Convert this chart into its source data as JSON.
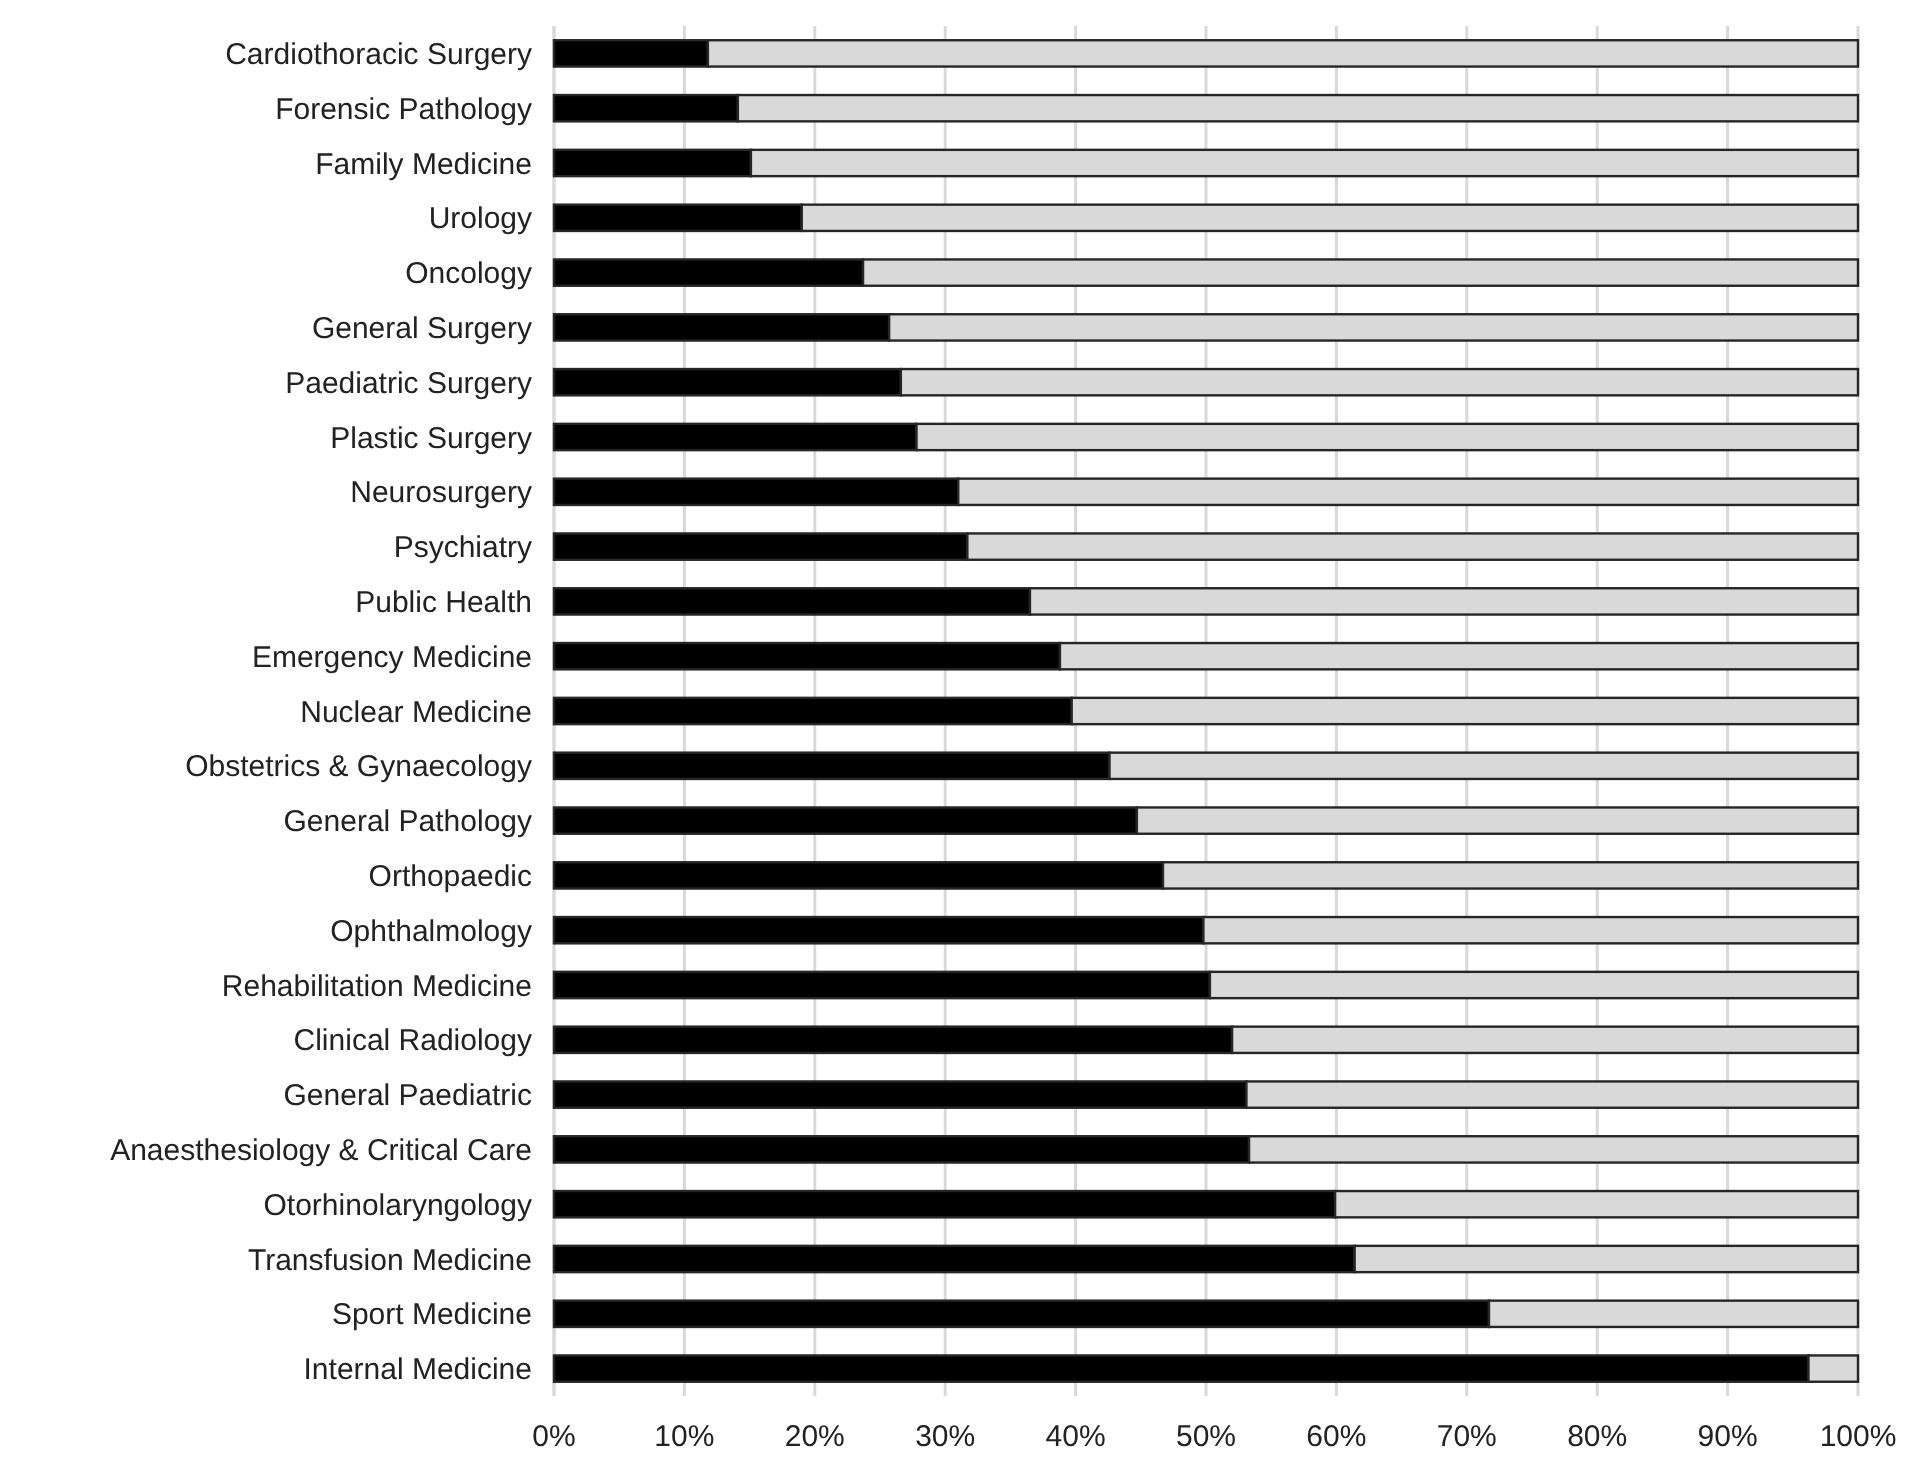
{
  "chart_data": {
    "type": "bar",
    "orientation": "horizontal",
    "stacked": true,
    "categories": [
      "Cardiothoracic Surgery",
      "Forensic Pathology",
      "Family Medicine",
      "Urology",
      "Oncology",
      "General Surgery",
      "Paediatric Surgery ",
      "Plastic Surgery ",
      "Neurosurgery",
      "Psychiatry ",
      "Public Health",
      "Emergency Medicine",
      "Nuclear Medicine",
      "Obstetrics & Gynaecology",
      "General Pathology",
      "Orthopaedic",
      "Ophthalmology",
      "Rehabilitation Medicine",
      "Clinical Radiology",
      "General Paediatric",
      "Anaesthesiology & Critical Care",
      "Otorhinolaryngology",
      "Transfusion Medicine",
      "Sport Medicine",
      "Internal Medicine"
    ],
    "series": [
      {
        "color": "#000000",
        "values": [
          11.8,
          14.1,
          15.1,
          19.0,
          23.7,
          25.7,
          26.6,
          27.8,
          31.0,
          31.7,
          36.5,
          38.8,
          39.7,
          42.6,
          44.7,
          46.7,
          49.8,
          50.3,
          52.0,
          53.1,
          53.3,
          59.9,
          61.4,
          71.7,
          96.2
        ]
      },
      {
        "color": "#d9d9d9",
        "values": [
          88.2,
          85.9,
          84.9,
          81.0,
          76.3,
          74.3,
          73.4,
          72.2,
          69.0,
          68.3,
          63.5,
          61.2,
          60.3,
          57.4,
          55.3,
          53.3,
          50.2,
          49.7,
          48.0,
          46.9,
          46.7,
          40.1,
          38.6,
          28.3,
          3.8
        ]
      }
    ],
    "xlim": [
      0,
      100
    ],
    "xticks": [
      {
        "value": 0,
        "label": "0%"
      },
      {
        "value": 10,
        "label": "10%"
      },
      {
        "value": 20,
        "label": "20%"
      },
      {
        "value": 30,
        "label": "30%"
      },
      {
        "value": 40,
        "label": "40%"
      },
      {
        "value": 50,
        "label": "50%"
      },
      {
        "value": 60,
        "label": "60%"
      },
      {
        "value": 70,
        "label": "70%"
      },
      {
        "value": 80,
        "label": "80%"
      },
      {
        "value": 90,
        "label": "90%"
      },
      {
        "value": 100,
        "label": "100%"
      }
    ],
    "grid": "x"
  }
}
